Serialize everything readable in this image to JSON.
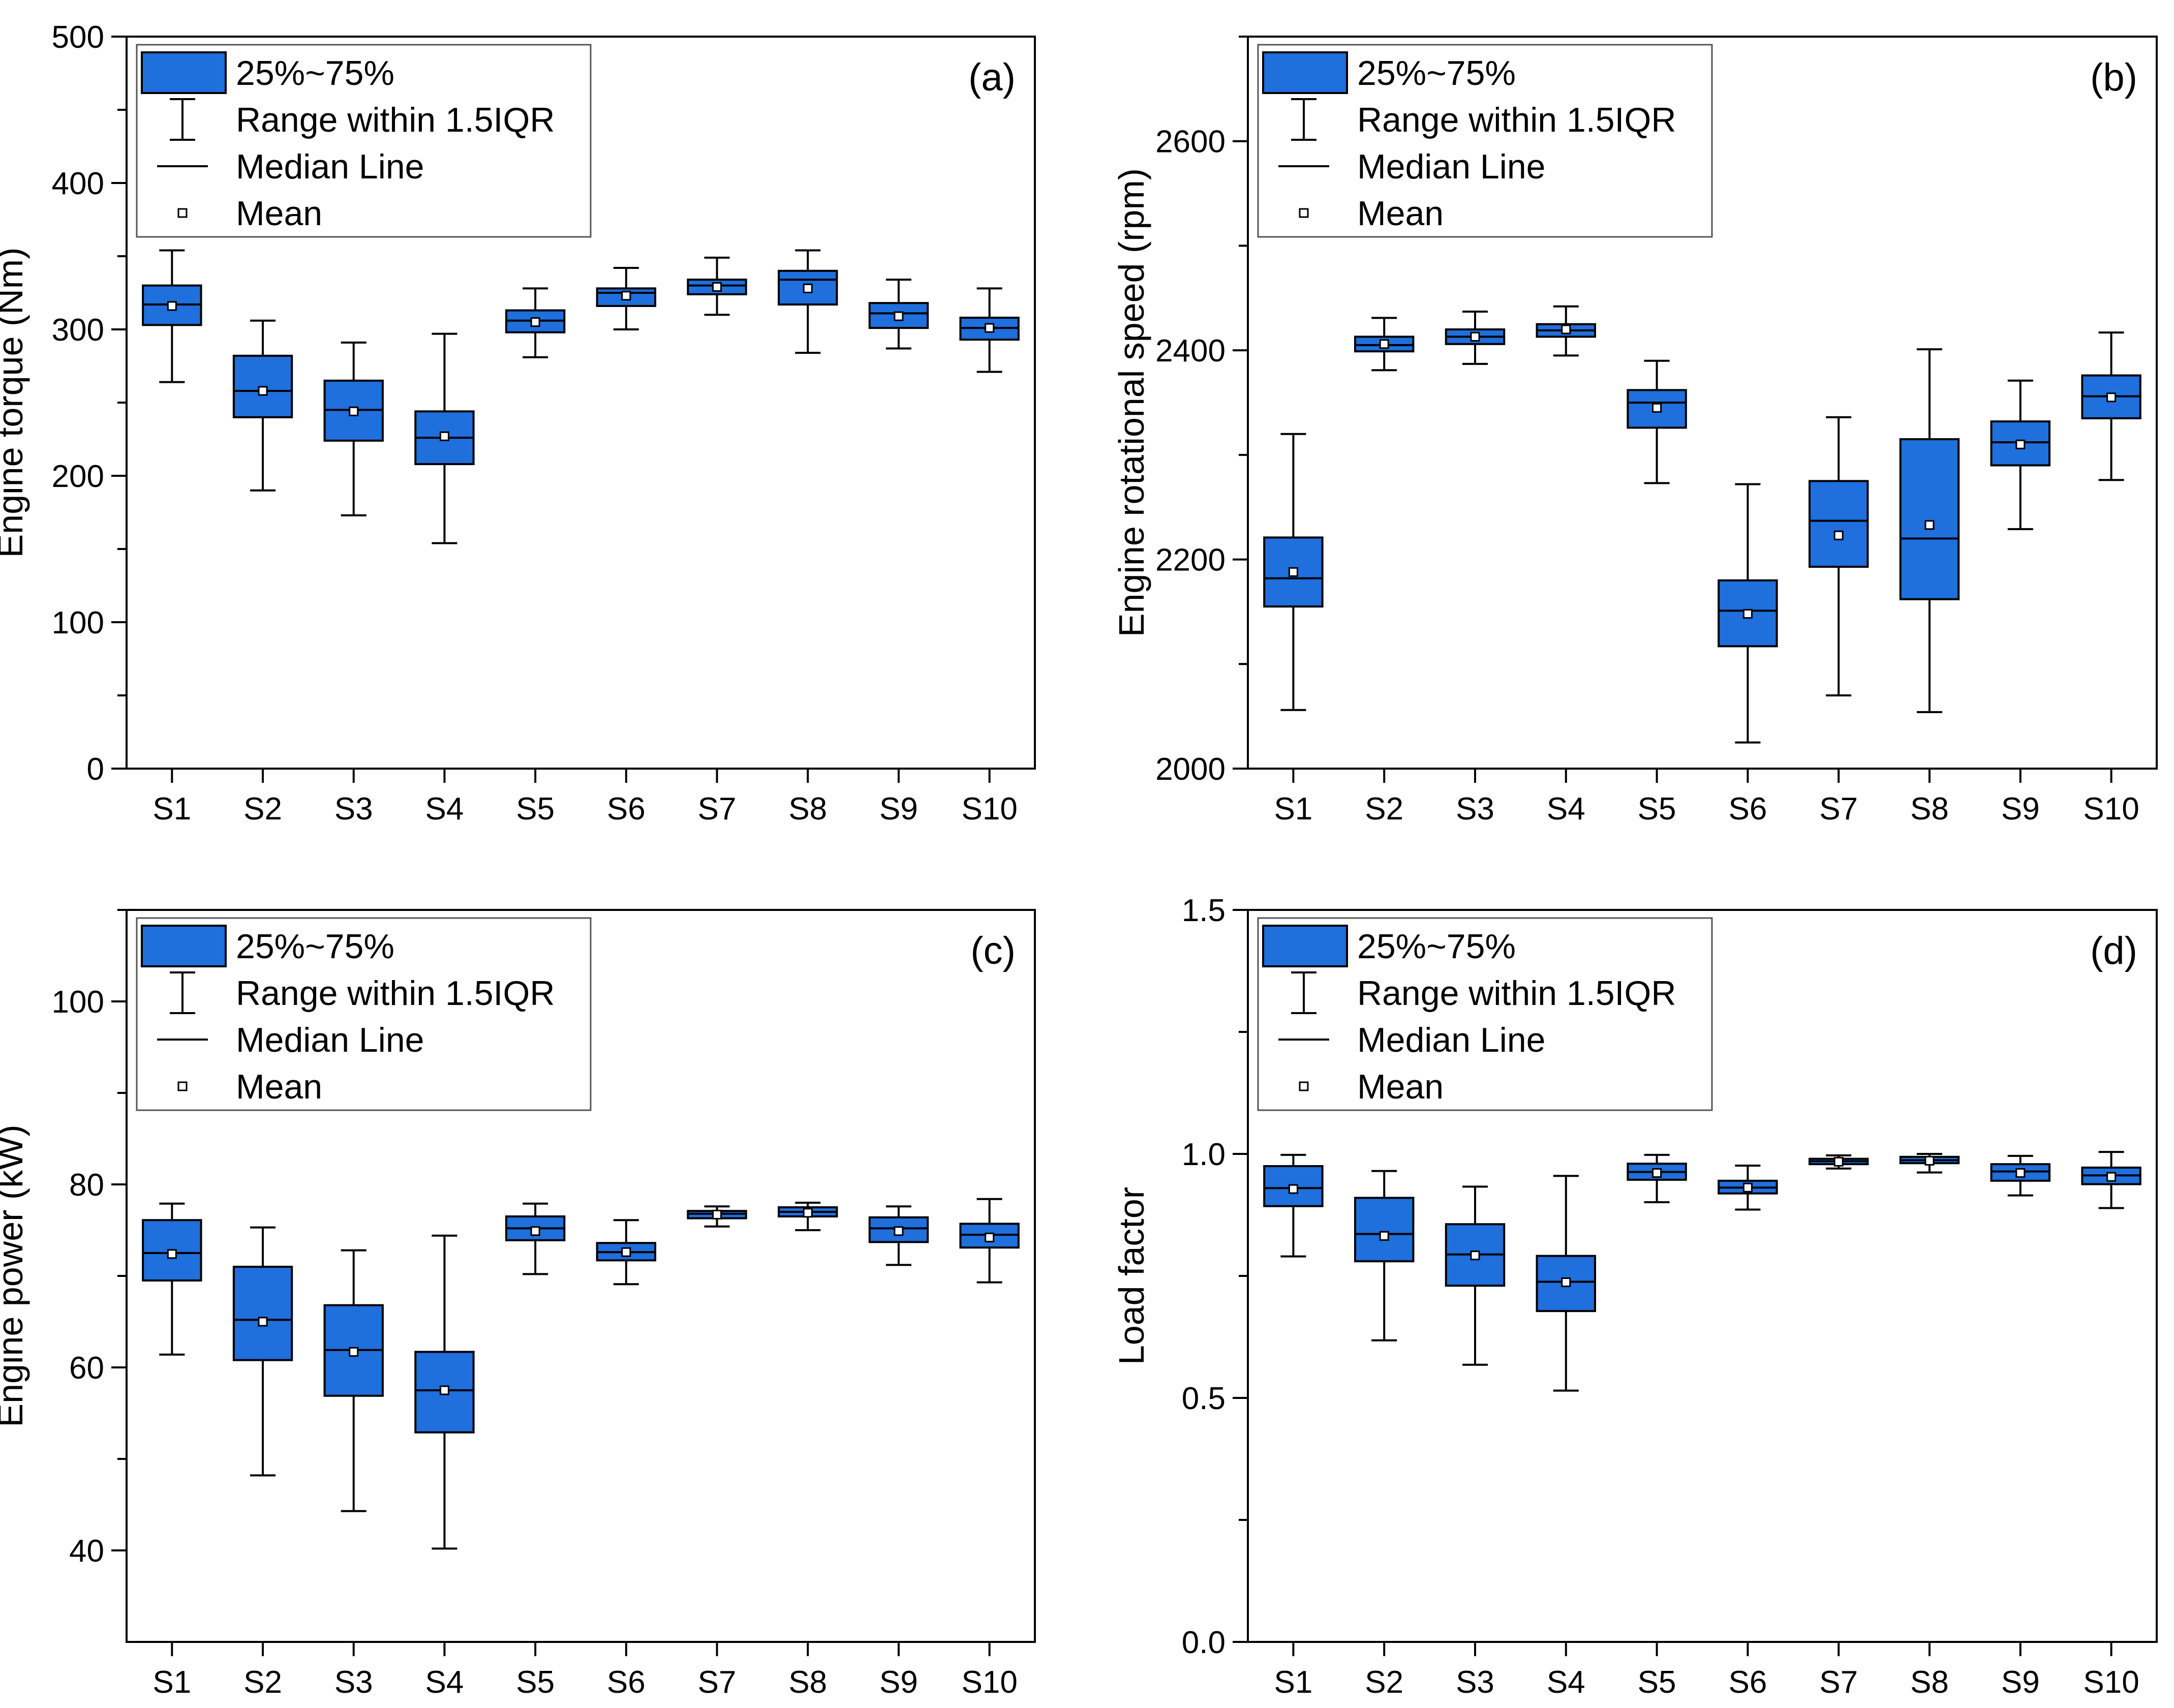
{
  "legend": {
    "box": "25%~75%",
    "whisker": "Range within 1.5IQR",
    "median": "Median Line",
    "mean": "Mean"
  },
  "colors": {
    "box_fill": "#1f6fdc",
    "stroke": "#000000",
    "background": "#ffffff"
  },
  "chart_data": [
    {
      "type": "box",
      "panel": "(a)",
      "title": "",
      "xlabel": "",
      "ylabel": "Engine torque (Nm)",
      "ylim": [
        0,
        500
      ],
      "yticks": [
        0,
        100,
        200,
        300,
        400,
        500
      ],
      "categories": [
        "S1",
        "S2",
        "S3",
        "S4",
        "S5",
        "S6",
        "S7",
        "S8",
        "S9",
        "S10"
      ],
      "series": [
        {
          "name": "S1",
          "whisker_low": 264,
          "q1": 303,
          "median": 317,
          "q3": 330,
          "whisker_high": 354,
          "mean": 316
        },
        {
          "name": "S2",
          "whisker_low": 190,
          "q1": 240,
          "median": 258,
          "q3": 282,
          "whisker_high": 306,
          "mean": 258
        },
        {
          "name": "S3",
          "whisker_low": 173,
          "q1": 224,
          "median": 245,
          "q3": 265,
          "whisker_high": 291,
          "mean": 244
        },
        {
          "name": "S4",
          "whisker_low": 154,
          "q1": 208,
          "median": 226,
          "q3": 244,
          "whisker_high": 297,
          "mean": 227
        },
        {
          "name": "S5",
          "whisker_low": 281,
          "q1": 298,
          "median": 306,
          "q3": 313,
          "whisker_high": 328,
          "mean": 305
        },
        {
          "name": "S6",
          "whisker_low": 300,
          "q1": 316,
          "median": 325,
          "q3": 328,
          "whisker_high": 342,
          "mean": 323
        },
        {
          "name": "S7",
          "whisker_low": 310,
          "q1": 324,
          "median": 330,
          "q3": 334,
          "whisker_high": 349,
          "mean": 329
        },
        {
          "name": "S8",
          "whisker_low": 284,
          "q1": 317,
          "median": 334,
          "q3": 340,
          "whisker_high": 354,
          "mean": 328
        },
        {
          "name": "S9",
          "whisker_low": 287,
          "q1": 301,
          "median": 311,
          "q3": 318,
          "whisker_high": 334,
          "mean": 309
        },
        {
          "name": "S10",
          "whisker_low": 271,
          "q1": 293,
          "median": 301,
          "q3": 308,
          "whisker_high": 328,
          "mean": 301
        }
      ]
    },
    {
      "type": "box",
      "panel": "(b)",
      "title": "",
      "xlabel": "",
      "ylabel": "Engine rotational speed (rpm)",
      "ylim": [
        2000,
        2700
      ],
      "yticks": [
        2000,
        2200,
        2400,
        2600
      ],
      "categories": [
        "S1",
        "S2",
        "S3",
        "S4",
        "S5",
        "S6",
        "S7",
        "S8",
        "S9",
        "S10"
      ],
      "series": [
        {
          "name": "S1",
          "whisker_low": 2056,
          "q1": 2155,
          "median": 2182,
          "q3": 2221,
          "whisker_high": 2320,
          "mean": 2188
        },
        {
          "name": "S2",
          "whisker_low": 2381,
          "q1": 2399,
          "median": 2405,
          "q3": 2413,
          "whisker_high": 2431,
          "mean": 2406
        },
        {
          "name": "S3",
          "whisker_low": 2387,
          "q1": 2406,
          "median": 2413,
          "q3": 2420,
          "whisker_high": 2437,
          "mean": 2413
        },
        {
          "name": "S4",
          "whisker_low": 2395,
          "q1": 2413,
          "median": 2419,
          "q3": 2425,
          "whisker_high": 2442,
          "mean": 2420
        },
        {
          "name": "S5",
          "whisker_low": 2273,
          "q1": 2326,
          "median": 2350,
          "q3": 2362,
          "whisker_high": 2390,
          "mean": 2345
        },
        {
          "name": "S6",
          "whisker_low": 2025,
          "q1": 2117,
          "median": 2151,
          "q3": 2180,
          "whisker_high": 2272,
          "mean": 2148
        },
        {
          "name": "S7",
          "whisker_low": 2070,
          "q1": 2193,
          "median": 2237,
          "q3": 2275,
          "whisker_high": 2336,
          "mean": 2223
        },
        {
          "name": "S8",
          "whisker_low": 2054,
          "q1": 2162,
          "median": 2220,
          "q3": 2315,
          "whisker_high": 2401,
          "mean": 2233
        },
        {
          "name": "S9",
          "whisker_low": 2229,
          "q1": 2290,
          "median": 2312,
          "q3": 2332,
          "whisker_high": 2371,
          "mean": 2310
        },
        {
          "name": "S10",
          "whisker_low": 2276,
          "q1": 2335,
          "median": 2356,
          "q3": 2376,
          "whisker_high": 2417,
          "mean": 2355
        }
      ]
    },
    {
      "type": "box",
      "panel": "(c)",
      "title": "",
      "xlabel": "",
      "ylabel": "Engine power (kW)",
      "ylim": [
        30,
        110
      ],
      "yticks": [
        40,
        60,
        80,
        100
      ],
      "categories": [
        "S1",
        "S2",
        "S3",
        "S4",
        "S5",
        "S6",
        "S7",
        "S8",
        "S9",
        "S10"
      ],
      "series": [
        {
          "name": "S1",
          "whisker_low": 61.4,
          "q1": 69.5,
          "median": 72.5,
          "q3": 76.1,
          "whisker_high": 77.9,
          "mean": 72.4
        },
        {
          "name": "S2",
          "whisker_low": 48.2,
          "q1": 60.8,
          "median": 65.2,
          "q3": 71.0,
          "whisker_high": 75.3,
          "mean": 65.0
        },
        {
          "name": "S3",
          "whisker_low": 44.3,
          "q1": 56.9,
          "median": 61.9,
          "q3": 66.8,
          "whisker_high": 72.8,
          "mean": 61.7
        },
        {
          "name": "S4",
          "whisker_low": 40.2,
          "q1": 52.9,
          "median": 57.5,
          "q3": 61.7,
          "whisker_high": 74.4,
          "mean": 57.5
        },
        {
          "name": "S5",
          "whisker_low": 70.2,
          "q1": 73.9,
          "median": 75.2,
          "q3": 76.5,
          "whisker_high": 77.9,
          "mean": 74.9
        },
        {
          "name": "S6",
          "whisker_low": 69.1,
          "q1": 71.7,
          "median": 72.6,
          "q3": 73.6,
          "whisker_high": 76.1,
          "mean": 72.6
        },
        {
          "name": "S7",
          "whisker_low": 75.4,
          "q1": 76.3,
          "median": 76.8,
          "q3": 77.1,
          "whisker_high": 77.6,
          "mean": 76.7
        },
        {
          "name": "S8",
          "whisker_low": 75.0,
          "q1": 76.5,
          "median": 77.0,
          "q3": 77.5,
          "whisker_high": 78.0,
          "mean": 76.9
        },
        {
          "name": "S9",
          "whisker_low": 71.2,
          "q1": 73.7,
          "median": 75.2,
          "q3": 76.4,
          "whisker_high": 77.6,
          "mean": 74.9
        },
        {
          "name": "S10",
          "whisker_low": 69.3,
          "q1": 73.1,
          "median": 74.5,
          "q3": 75.7,
          "whisker_high": 78.4,
          "mean": 74.2
        }
      ]
    },
    {
      "type": "box",
      "panel": "(d)",
      "title": "",
      "xlabel": "",
      "ylabel": "Load factor",
      "ylim": [
        0.0,
        1.5
      ],
      "yticks": [
        0.0,
        0.5,
        1.0,
        1.5
      ],
      "categories": [
        "S1",
        "S2",
        "S3",
        "S4",
        "S5",
        "S6",
        "S7",
        "S8",
        "S9",
        "S10"
      ],
      "series": [
        {
          "name": "S1",
          "whisker_low": 0.79,
          "q1": 0.893,
          "median": 0.93,
          "q3": 0.975,
          "whisker_high": 0.998,
          "mean": 0.928
        },
        {
          "name": "S2",
          "whisker_low": 0.618,
          "q1": 0.78,
          "median": 0.836,
          "q3": 0.91,
          "whisker_high": 0.965,
          "mean": 0.832
        },
        {
          "name": "S3",
          "whisker_low": 0.568,
          "q1": 0.73,
          "median": 0.794,
          "q3": 0.856,
          "whisker_high": 0.933,
          "mean": 0.792
        },
        {
          "name": "S4",
          "whisker_low": 0.515,
          "q1": 0.678,
          "median": 0.738,
          "q3": 0.791,
          "whisker_high": 0.955,
          "mean": 0.737
        },
        {
          "name": "S5",
          "whisker_low": 0.901,
          "q1": 0.947,
          "median": 0.963,
          "q3": 0.98,
          "whisker_high": 0.998,
          "mean": 0.961
        },
        {
          "name": "S6",
          "whisker_low": 0.886,
          "q1": 0.919,
          "median": 0.931,
          "q3": 0.945,
          "whisker_high": 0.976,
          "mean": 0.931
        },
        {
          "name": "S7",
          "whisker_low": 0.97,
          "q1": 0.979,
          "median": 0.985,
          "q3": 0.99,
          "whisker_high": 0.997,
          "mean": 0.984
        },
        {
          "name": "S8",
          "whisker_low": 0.962,
          "q1": 0.981,
          "median": 0.987,
          "q3": 0.994,
          "whisker_high": 1.0,
          "mean": 0.986
        },
        {
          "name": "S9",
          "whisker_low": 0.915,
          "q1": 0.945,
          "median": 0.964,
          "q3": 0.979,
          "whisker_high": 0.996,
          "mean": 0.961
        },
        {
          "name": "S10",
          "whisker_low": 0.889,
          "q1": 0.938,
          "median": 0.956,
          "q3": 0.972,
          "whisker_high": 1.004,
          "mean": 0.953
        }
      ]
    }
  ]
}
